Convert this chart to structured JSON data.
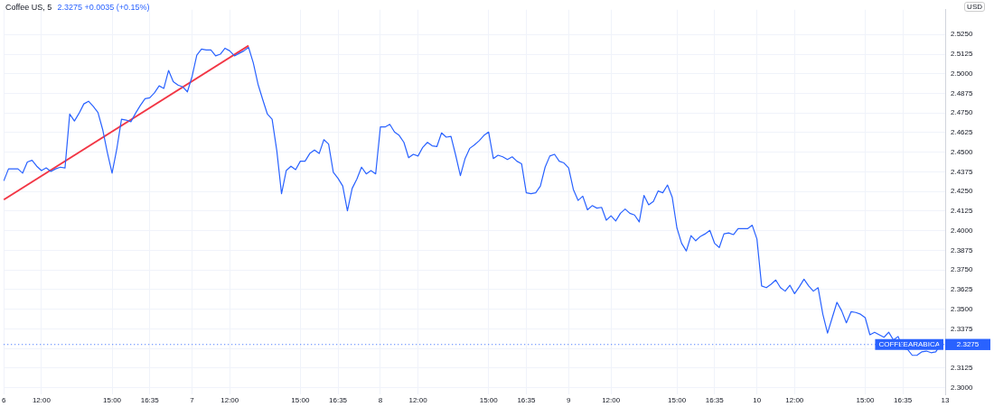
{
  "chart_data": {
    "type": "line",
    "title": "Coffee US, 5",
    "subtitle": "2.3275 +0.0035 (+0.15%)",
    "ylabel": "USD",
    "categories": [
      "6",
      null,
      null,
      null,
      null,
      null,
      null,
      null,
      "12:00",
      null,
      null,
      null,
      null,
      null,
      null,
      null,
      null,
      null,
      null,
      null,
      null,
      null,
      null,
      "15:00",
      null,
      null,
      null,
      null,
      null,
      null,
      null,
      "16:35",
      null,
      null,
      null,
      null,
      null,
      null,
      null,
      null,
      "7",
      null,
      null,
      null,
      null,
      null,
      null,
      null,
      "12:00",
      null,
      null,
      null,
      null,
      null,
      null,
      null,
      null,
      null,
      null,
      null,
      null,
      null,
      null,
      "15:00",
      null,
      null,
      null,
      null,
      null,
      null,
      null,
      "16:35",
      null,
      null,
      null,
      null,
      null,
      null,
      null,
      null,
      "8",
      null,
      null,
      null,
      null,
      null,
      null,
      null,
      "12:00",
      null,
      null,
      null,
      null,
      null,
      null,
      null,
      null,
      null,
      null,
      null,
      null,
      null,
      null,
      "15:00",
      null,
      null,
      null,
      null,
      null,
      null,
      null,
      "16:35",
      null,
      null,
      null,
      null,
      null,
      null,
      null,
      null,
      "9",
      null,
      null,
      null,
      null,
      null,
      null,
      null,
      null,
      "12:00",
      null,
      null,
      null,
      null,
      null,
      null,
      null,
      null,
      null,
      null,
      null,
      null,
      null,
      "15:00",
      null,
      null,
      null,
      null,
      null,
      null,
      null,
      "16:35",
      null,
      null,
      null,
      null,
      null,
      null,
      null,
      null,
      "10",
      null,
      null,
      null,
      null,
      null,
      null,
      null,
      "12:00",
      null,
      null,
      null,
      null,
      null,
      null,
      null,
      null,
      null,
      null,
      null,
      null,
      null,
      null,
      "15:00",
      null,
      null,
      null,
      null,
      null,
      null,
      null,
      "16:35",
      null,
      null,
      null,
      null,
      null,
      null,
      null,
      null,
      "13"
    ],
    "series": [
      {
        "type": "line",
        "color": "#2962ff",
        "values": [
          2.4318,
          2.4394,
          2.4394,
          2.4394,
          2.4367,
          2.4438,
          2.4449,
          2.4411,
          2.4383,
          2.44,
          2.4378,
          2.4394,
          2.4405,
          2.44,
          2.4743,
          2.4699,
          2.4749,
          2.4808,
          2.4825,
          2.4792,
          2.4754,
          2.4645,
          2.4498,
          2.4367,
          2.452,
          2.471,
          2.4705,
          2.4694,
          2.4749,
          2.4798,
          2.4841,
          2.4847,
          2.4879,
          2.4923,
          2.4907,
          2.5021,
          2.495,
          2.4928,
          2.4917,
          2.4885,
          2.4983,
          2.5119,
          2.5157,
          2.5152,
          2.5152,
          2.5114,
          2.5125,
          2.5163,
          2.5146,
          2.5114,
          2.513,
          2.5146,
          2.5168,
          2.507,
          2.4934,
          2.4836,
          2.4743,
          2.471,
          2.4509,
          2.4236,
          2.4383,
          2.4411,
          2.4389,
          2.4443,
          2.4443,
          2.4492,
          2.4514,
          2.4492,
          2.458,
          2.4552,
          2.4372,
          2.4334,
          2.4285,
          2.4127,
          2.4269,
          2.4329,
          2.4405,
          2.4362,
          2.4383,
          2.4362,
          2.4661,
          2.4661,
          2.4678,
          2.4629,
          2.4607,
          2.4563,
          2.4465,
          2.4487,
          2.4476,
          2.4531,
          2.4563,
          2.4541,
          2.4536,
          2.4623,
          2.4596,
          2.4601,
          2.4481,
          2.4351,
          2.446,
          2.4525,
          2.4547,
          2.4574,
          2.4607,
          2.4629,
          2.446,
          2.4481,
          2.4471,
          2.4454,
          2.4471,
          2.4443,
          2.4427,
          2.4242,
          2.4236,
          2.4242,
          2.4285,
          2.4405,
          2.4476,
          2.4487,
          2.4443,
          2.4432,
          2.44,
          2.4263,
          2.4193,
          2.422,
          2.4133,
          2.416,
          2.4144,
          2.4149,
          2.4067,
          2.4095,
          2.4062,
          2.4111,
          2.4138,
          2.4111,
          2.41,
          2.4056,
          2.4225,
          2.4165,
          2.4187,
          2.4253,
          2.4242,
          2.4291,
          2.4214,
          2.4018,
          2.392,
          2.3871,
          2.3969,
          2.3936,
          2.3964,
          2.398,
          2.4002,
          2.392,
          2.3893,
          2.398,
          2.3986,
          2.3975,
          2.4013,
          2.4013,
          2.4013,
          2.4035,
          2.3947,
          2.3648,
          2.3637,
          2.3659,
          2.3686,
          2.3637,
          2.3615,
          2.3653,
          2.3599,
          2.3642,
          2.3691,
          2.3648,
          2.3615,
          2.3637,
          2.3468,
          2.3348,
          2.3446,
          2.3544,
          2.349,
          2.3413,
          2.3484,
          2.3479,
          2.3468,
          2.3446,
          2.3337,
          2.3353,
          2.3337,
          2.3321,
          2.3353,
          2.3304,
          2.3326,
          2.325,
          2.3244,
          2.3206,
          2.3206,
          2.3228,
          2.3233,
          2.3223,
          2.3228,
          2.3275,
          null
        ]
      },
      {
        "type": "line",
        "color": "#f23645",
        "values": [
          2.4198,
          null,
          null,
          null,
          null,
          null,
          null,
          null,
          null,
          null,
          null,
          null,
          null,
          null,
          null,
          null,
          null,
          null,
          null,
          null,
          null,
          null,
          null,
          null,
          null,
          null,
          null,
          null,
          null,
          null,
          null,
          null,
          null,
          null,
          null,
          null,
          null,
          null,
          null,
          null,
          null,
          null,
          null,
          null,
          null,
          null,
          null,
          null,
          null,
          null,
          null,
          null,
          2.5179,
          null,
          null,
          null,
          null,
          null,
          null,
          null,
          null,
          null,
          null,
          null,
          null,
          null,
          null,
          null,
          null,
          null,
          null,
          null,
          null,
          null,
          null,
          null,
          null,
          null,
          null,
          null,
          null,
          null,
          null,
          null,
          null,
          null,
          null,
          null,
          null,
          null,
          null,
          null,
          null,
          null,
          null,
          null,
          null,
          null,
          null,
          null,
          null,
          null,
          null,
          null,
          null,
          null,
          null,
          null,
          null,
          null,
          null,
          null,
          null,
          null,
          null,
          null,
          null,
          null,
          null,
          null,
          null,
          null,
          null,
          null,
          null,
          null,
          null,
          null,
          null,
          null,
          null,
          null,
          null,
          null,
          null,
          null,
          null,
          null,
          null,
          null,
          null,
          null,
          null,
          null,
          null,
          null,
          null,
          null,
          null,
          null,
          null,
          null,
          null,
          null,
          null,
          null,
          null,
          null,
          null,
          null,
          null,
          null,
          null,
          null,
          null,
          null,
          null,
          null,
          null,
          null,
          null,
          null,
          null,
          null,
          null,
          null,
          null,
          null,
          null,
          null,
          null,
          null,
          null,
          null,
          null,
          null,
          null,
          null,
          null,
          null,
          null,
          null,
          null,
          null,
          null,
          null,
          null,
          null,
          null,
          null,
          null
        ]
      }
    ],
    "ylim": [
      2.2955,
      2.5408
    ],
    "yticks": [
      {
        "value": 2.3,
        "label": "2.3000"
      },
      {
        "value": 2.3125,
        "label": "2.3125"
      },
      {
        "value": 2.325,
        "label": null
      },
      {
        "value": 2.3375,
        "label": "2.3375"
      },
      {
        "value": 2.35,
        "label": "2.3500"
      },
      {
        "value": 2.3625,
        "label": "2.3625"
      },
      {
        "value": 2.375,
        "label": "2.3750"
      },
      {
        "value": 2.3875,
        "label": "2.3875"
      },
      {
        "value": 2.4,
        "label": "2.4000"
      },
      {
        "value": 2.4125,
        "label": "2.4125"
      },
      {
        "value": 2.425,
        "label": "2.4250"
      },
      {
        "value": 2.4375,
        "label": "2.4375"
      },
      {
        "value": 2.45,
        "label": "2.4500"
      },
      {
        "value": 2.4625,
        "label": "2.4625"
      },
      {
        "value": 2.475,
        "label": "2.4750"
      },
      {
        "value": 2.4875,
        "label": "2.4875"
      },
      {
        "value": 2.5,
        "label": "2.5000"
      },
      {
        "value": 2.5125,
        "label": "2.5125"
      },
      {
        "value": 2.525,
        "label": "2.5250"
      }
    ],
    "ref_lines": [
      {
        "axis": "y",
        "value": 2.3275,
        "label": "COFFEEARABICA",
        "color": "#2962ff",
        "line_style": "dotted"
      }
    ],
    "annotations": [
      "2.3275"
    ],
    "grid": true,
    "legend": false,
    "marker": "none",
    "line_style": "solid"
  }
}
